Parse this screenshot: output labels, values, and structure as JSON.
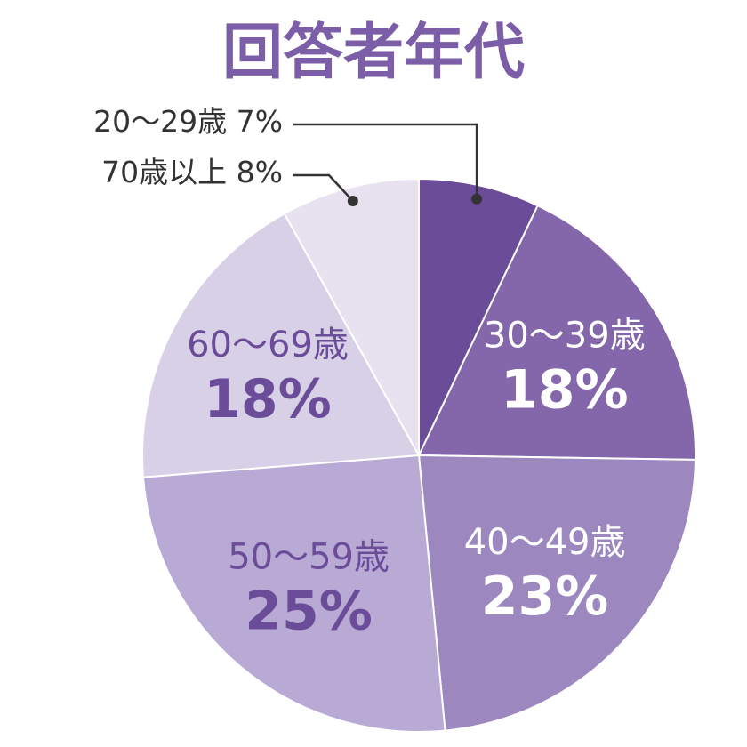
{
  "chart_data": {
    "type": "pie",
    "title": "回答者年代",
    "slices": [
      {
        "label": "20〜29歳",
        "value": 7,
        "value_text": "7%",
        "color": "#6b4c99",
        "label_color": "#ffffff",
        "label_style": "callout"
      },
      {
        "label": "30〜39歳",
        "value": 18,
        "value_text": "18%",
        "color": "#8466aa",
        "label_color": "#ffffff",
        "label_style": "inside"
      },
      {
        "label": "40〜49歳",
        "value": 23,
        "value_text": "23%",
        "color": "#9c88bf",
        "label_color": "#ffffff",
        "label_style": "inside"
      },
      {
        "label": "50〜59歳",
        "value": 25,
        "value_text": "25%",
        "color": "#b8aad4",
        "label_color": "#6b4c99",
        "label_style": "inside"
      },
      {
        "label": "60〜69歳",
        "value": 18,
        "value_text": "18%",
        "color": "#d8d0e6",
        "label_color": "#6b4c99",
        "label_style": "inside"
      },
      {
        "label": "70歳以上",
        "value": 8,
        "value_text": "8%",
        "color": "#e8e2f0",
        "label_color": "#6b4c99",
        "label_style": "callout"
      }
    ],
    "start_angle": "12 o'clock",
    "direction": "clockwise",
    "legend": "none",
    "title_color": "#7b5ea7",
    "callout_text_color": "#333333",
    "callout_line_color": "#333333"
  }
}
